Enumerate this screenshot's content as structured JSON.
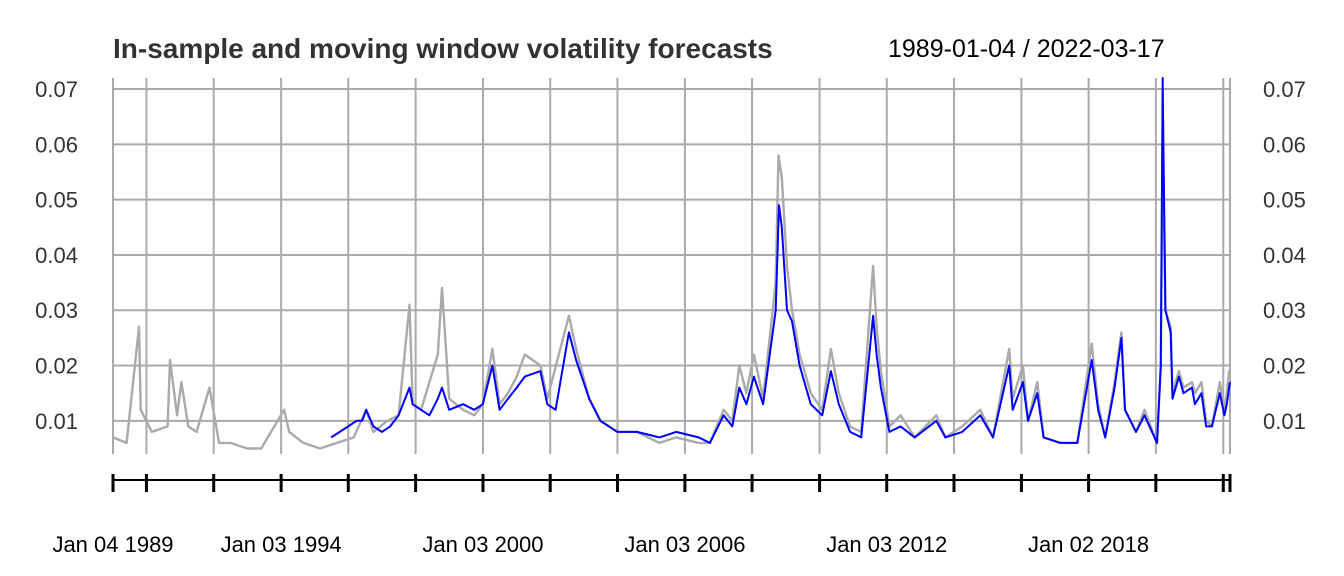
{
  "chart_data": {
    "type": "line",
    "title": "In-sample and moving window volatility forecasts",
    "date_range_label": "1989-01-04 / 2022-03-17",
    "x_start": "1989-01-04",
    "x_end": "2022-03-17",
    "ylim": [
      0.004,
      0.072
    ],
    "y_ticks": [
      "0.01",
      "0.02",
      "0.03",
      "0.04",
      "0.05",
      "0.06",
      "0.07"
    ],
    "x_tick_labels": [
      {
        "date": "1989-01-04",
        "label": "Jan 04 1989"
      },
      {
        "date": "1994-01-03",
        "label": "Jan 03 1994"
      },
      {
        "date": "2000-01-03",
        "label": "Jan 03 2000"
      },
      {
        "date": "2006-01-03",
        "label": "Jan 03 2006"
      },
      {
        "date": "2012-01-03",
        "label": "Jan 03 2012"
      },
      {
        "date": "2018-01-02",
        "label": "Jan 02 2018"
      }
    ],
    "x_minor_ticks": [
      "1989-01-04",
      "1990-01-02",
      "1992-01-02",
      "1994-01-03",
      "1996-01-02",
      "1998-01-02",
      "2000-01-03",
      "2002-01-02",
      "2004-01-02",
      "2006-01-03",
      "2008-01-02",
      "2010-01-04",
      "2012-01-03",
      "2014-01-02",
      "2016-01-04",
      "2018-01-02",
      "2020-01-02",
      "2022-01-03",
      "2022-03-17"
    ],
    "x_gridlines": [
      "1990-01-02",
      "1992-01-02",
      "1994-01-03",
      "1996-01-02",
      "1998-01-02",
      "2000-01-03",
      "2002-01-02",
      "2004-01-02",
      "2006-01-03",
      "2008-01-02",
      "2010-01-04",
      "2012-01-03",
      "2014-01-02",
      "2016-01-04",
      "2018-01-02",
      "2020-01-02",
      "2022-01-03",
      "2022-03-17"
    ],
    "grid": true,
    "series": [
      {
        "color": "#aaaaaa",
        "x": [
          "1989-01-04",
          "1989-06-01",
          "1989-10-13",
          "1989-11-01",
          "1990-03-01",
          "1990-08-20",
          "1990-09-15",
          "1990-12-01",
          "1991-01-17",
          "1991-04-01",
          "1991-07-01",
          "1991-11-18",
          "1992-03-01",
          "1992-07-01",
          "1993-01-01",
          "1993-06-01",
          "1994-02-04",
          "1994-04-01",
          "1994-09-01",
          "1995-03-01",
          "1995-09-01",
          "1996-03-01",
          "1996-07-15",
          "1996-10-01",
          "1997-03-01",
          "1997-07-01",
          "1997-10-27",
          "1997-12-01",
          "1998-03-01",
          "1998-08-31",
          "1998-10-15",
          "1999-01-01",
          "1999-06-01",
          "1999-10-01",
          "2000-01-01",
          "2000-04-14",
          "2000-07-01",
          "2000-10-01",
          "2001-01-03",
          "2001-04-01",
          "2001-09-17",
          "2001-12-01",
          "2002-07-24",
          "2002-10-10",
          "2003-03-01",
          "2003-07-01",
          "2004-01-01",
          "2004-08-01",
          "2005-04-01",
          "2005-10-01",
          "2006-06-01",
          "2006-10-01",
          "2007-02-27",
          "2007-06-01",
          "2007-08-16",
          "2007-11-01",
          "2008-01-22",
          "2008-05-01",
          "2008-09-15",
          "2008-10-15",
          "2008-11-20",
          "2009-01-15",
          "2009-03-10",
          "2009-06-01",
          "2009-10-01",
          "2010-02-01",
          "2010-05-07",
          "2010-08-01",
          "2010-12-01",
          "2011-04-01",
          "2011-08-08",
          "2011-09-15",
          "2011-11-01",
          "2012-02-01",
          "2012-06-01",
          "2012-11-01",
          "2013-06-24",
          "2013-10-01",
          "2014-04-01",
          "2014-10-15",
          "2015-03-01",
          "2015-08-24",
          "2015-10-01",
          "2016-01-20",
          "2016-03-15",
          "2016-06-24",
          "2016-09-01",
          "2017-03-01",
          "2017-09-01",
          "2018-02-05",
          "2018-04-15",
          "2018-07-01",
          "2018-10-11",
          "2018-12-24",
          "2019-02-01",
          "2019-06-01",
          "2019-09-01",
          "2020-01-15",
          "2020-02-25",
          "2020-03-16",
          "2020-03-25",
          "2020-04-15",
          "2020-06-11",
          "2020-07-01",
          "2020-09-08",
          "2020-10-28",
          "2021-01-27",
          "2021-03-01",
          "2021-05-12",
          "2021-07-01",
          "2021-09-01",
          "2021-11-26",
          "2022-01-15",
          "2022-02-10",
          "2022-03-07",
          "2022-03-17"
        ],
        "values": [
          0.007,
          0.006,
          0.027,
          0.012,
          0.008,
          0.009,
          0.021,
          0.011,
          0.017,
          0.009,
          0.008,
          0.016,
          0.006,
          0.006,
          0.005,
          0.005,
          0.012,
          0.008,
          0.006,
          0.005,
          0.006,
          0.007,
          0.012,
          0.008,
          0.01,
          0.011,
          0.031,
          0.013,
          0.012,
          0.022,
          0.034,
          0.014,
          0.012,
          0.011,
          0.013,
          0.023,
          0.013,
          0.015,
          0.018,
          0.022,
          0.02,
          0.014,
          0.029,
          0.023,
          0.014,
          0.01,
          0.008,
          0.008,
          0.006,
          0.007,
          0.006,
          0.006,
          0.012,
          0.01,
          0.02,
          0.015,
          0.022,
          0.014,
          0.035,
          0.058,
          0.054,
          0.038,
          0.03,
          0.022,
          0.015,
          0.012,
          0.023,
          0.015,
          0.009,
          0.008,
          0.038,
          0.027,
          0.019,
          0.009,
          0.011,
          0.007,
          0.011,
          0.007,
          0.009,
          0.012,
          0.007,
          0.023,
          0.014,
          0.02,
          0.01,
          0.017,
          0.007,
          0.006,
          0.006,
          0.024,
          0.013,
          0.007,
          0.017,
          0.026,
          0.012,
          0.008,
          0.012,
          0.006,
          0.02,
          0.064,
          0.055,
          0.03,
          0.027,
          0.015,
          0.019,
          0.016,
          0.017,
          0.015,
          0.017,
          0.01,
          0.009,
          0.017,
          0.012,
          0.015,
          0.019,
          0.017
        ]
      },
      {
        "color": "#0000ff",
        "x": [
          "1995-07-01",
          "1995-10-01",
          "1996-01-01",
          "1996-04-01",
          "1996-06-01",
          "1996-07-15",
          "1996-10-01",
          "1997-01-01",
          "1997-04-01",
          "1997-07-01",
          "1997-10-27",
          "1997-12-01",
          "1998-03-01",
          "1998-06-01",
          "1998-08-31",
          "1998-10-15",
          "1999-01-01",
          "1999-06-01",
          "1999-10-01",
          "2000-01-01",
          "2000-04-14",
          "2000-07-01",
          "2000-10-01",
          "2001-01-03",
          "2001-04-01",
          "2001-09-17",
          "2001-12-01",
          "2002-03-01",
          "2002-07-24",
          "2002-10-10",
          "2003-03-01",
          "2003-07-01",
          "2004-01-01",
          "2004-08-01",
          "2005-04-01",
          "2005-10-01",
          "2006-06-01",
          "2006-10-01",
          "2007-02-27",
          "2007-06-01",
          "2007-08-16",
          "2007-11-01",
          "2008-01-22",
          "2008-05-01",
          "2008-09-15",
          "2008-10-20",
          "2008-11-20",
          "2009-01-15",
          "2009-03-10",
          "2009-06-01",
          "2009-10-01",
          "2010-02-01",
          "2010-05-07",
          "2010-08-01",
          "2010-12-01",
          "2011-04-01",
          "2011-08-08",
          "2011-09-15",
          "2011-11-01",
          "2012-02-01",
          "2012-06-01",
          "2012-11-01",
          "2013-06-24",
          "2013-10-01",
          "2014-04-01",
          "2014-10-15",
          "2015-03-01",
          "2015-08-24",
          "2015-10-01",
          "2016-01-20",
          "2016-03-15",
          "2016-06-24",
          "2016-09-01",
          "2017-03-01",
          "2017-09-01",
          "2018-02-05",
          "2018-04-15",
          "2018-07-01",
          "2018-10-11",
          "2018-12-24",
          "2019-02-01",
          "2019-06-01",
          "2019-09-01",
          "2020-01-15",
          "2020-02-25",
          "2020-03-16",
          "2020-03-25",
          "2020-04-15",
          "2020-06-11",
          "2020-07-01",
          "2020-09-08",
          "2020-10-28",
          "2021-01-27",
          "2021-03-01",
          "2021-05-12",
          "2021-07-01",
          "2021-09-01",
          "2021-11-26",
          "2022-01-15",
          "2022-02-10",
          "2022-03-07",
          "2022-03-17"
        ],
        "values": [
          0.007,
          0.008,
          0.009,
          0.01,
          0.01,
          0.012,
          0.009,
          0.008,
          0.009,
          0.011,
          0.016,
          0.013,
          0.012,
          0.011,
          0.014,
          0.016,
          0.012,
          0.013,
          0.012,
          0.013,
          0.02,
          0.012,
          0.014,
          0.016,
          0.018,
          0.019,
          0.013,
          0.012,
          0.026,
          0.021,
          0.014,
          0.01,
          0.008,
          0.008,
          0.007,
          0.008,
          0.007,
          0.006,
          0.011,
          0.009,
          0.016,
          0.013,
          0.018,
          0.013,
          0.03,
          0.049,
          0.045,
          0.03,
          0.028,
          0.02,
          0.013,
          0.011,
          0.019,
          0.013,
          0.008,
          0.007,
          0.029,
          0.022,
          0.016,
          0.008,
          0.009,
          0.007,
          0.01,
          0.007,
          0.008,
          0.011,
          0.007,
          0.02,
          0.012,
          0.017,
          0.01,
          0.015,
          0.007,
          0.006,
          0.006,
          0.021,
          0.012,
          0.007,
          0.016,
          0.025,
          0.012,
          0.008,
          0.011,
          0.006,
          0.02,
          0.072,
          0.058,
          0.03,
          0.026,
          0.014,
          0.018,
          0.015,
          0.016,
          0.013,
          0.015,
          0.009,
          0.009,
          0.015,
          0.011,
          0.013,
          0.016,
          0.017
        ]
      }
    ]
  }
}
